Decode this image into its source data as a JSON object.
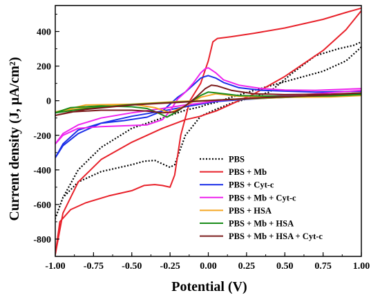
{
  "chart_data": {
    "type": "line",
    "title": "",
    "xlabel": "Potential (V)",
    "ylabel": "Current density (J, µA/cm²)",
    "xlim": [
      -1.0,
      1.0
    ],
    "ylim": [
      -900,
      550
    ],
    "xticks": [
      "-1.00",
      "-0.75",
      "-0.50",
      "-0.25",
      "0.00",
      "0.25",
      "0.50",
      "0.75",
      "1.00"
    ],
    "yticks": [
      "-800",
      "-600",
      "-400",
      "-200",
      "0",
      "200",
      "400"
    ],
    "grid": false,
    "legend_position": "bottom-right",
    "series": [
      {
        "name": "PBS",
        "color": "#000000",
        "dash": "dotted",
        "x": [
          1.0,
          0.9,
          0.75,
          0.5,
          0.3,
          0.15,
          0.05,
          -0.02,
          -0.05,
          -0.15,
          -0.3,
          -0.5,
          -0.7,
          -0.85,
          -0.95,
          -1.0,
          -0.95,
          -0.85,
          -0.7,
          -0.6,
          -0.5,
          -0.42,
          -0.35,
          -0.3,
          -0.25,
          -0.22,
          -0.15,
          -0.05,
          0.05,
          0.15,
          0.25,
          0.4,
          0.55,
          0.7,
          0.85,
          0.95,
          1.0
        ],
        "y": [
          310,
          230,
          170,
          110,
          60,
          20,
          -10,
          -25,
          -35,
          -55,
          -100,
          -160,
          -270,
          -400,
          -560,
          -680,
          -560,
          -470,
          -410,
          -390,
          -370,
          -350,
          -345,
          -365,
          -385,
          -370,
          -200,
          -90,
          -50,
          -15,
          10,
          50,
          160,
          260,
          300,
          320,
          340
        ]
      },
      {
        "name": "PBS + Mb",
        "color": "#e8212a",
        "dash": "solid",
        "x": [
          1.0,
          0.9,
          0.75,
          0.5,
          0.3,
          0.15,
          0.05,
          -0.02,
          -0.05,
          -0.15,
          -0.3,
          -0.5,
          -0.7,
          -0.85,
          -0.95,
          -1.0,
          -0.97,
          -0.9,
          -0.8,
          -0.65,
          -0.5,
          -0.42,
          -0.35,
          -0.3,
          -0.25,
          -0.22,
          -0.18,
          -0.12,
          -0.05,
          0.0,
          0.03,
          0.06,
          0.15,
          0.3,
          0.5,
          0.75,
          0.9,
          1.0
        ],
        "y": [
          520,
          410,
          290,
          140,
          40,
          -20,
          -60,
          -80,
          -90,
          -110,
          -160,
          -240,
          -340,
          -470,
          -650,
          -890,
          -700,
          -630,
          -590,
          -550,
          -520,
          -490,
          -485,
          -490,
          -500,
          -430,
          -200,
          0,
          100,
          230,
          340,
          360,
          370,
          390,
          420,
          470,
          510,
          535
        ]
      },
      {
        "name": "PBS + Cyt-c",
        "color": "#1a2ee8",
        "dash": "solid",
        "x": [
          1.0,
          0.7,
          0.4,
          0.2,
          0.05,
          -0.05,
          -0.15,
          -0.3,
          -0.5,
          -0.7,
          -0.85,
          -0.95,
          -1.0,
          -0.95,
          -0.85,
          -0.7,
          -0.55,
          -0.4,
          -0.3,
          -0.25,
          -0.2,
          -0.15,
          -0.1,
          -0.05,
          -0.02,
          0.0,
          0.05,
          0.1,
          0.2,
          0.35,
          0.5,
          0.7,
          1.0
        ],
        "y": [
          35,
          25,
          15,
          5,
          -5,
          -20,
          -35,
          -60,
          -90,
          -130,
          -190,
          -260,
          -330,
          -250,
          -170,
          -130,
          -115,
          -95,
          -60,
          -20,
          20,
          50,
          90,
          130,
          140,
          145,
          130,
          105,
          75,
          60,
          55,
          50,
          55
        ]
      },
      {
        "name": "PBS + Mb + Cyt-c",
        "color": "#ee22ee",
        "dash": "solid",
        "x": [
          1.0,
          0.7,
          0.4,
          0.2,
          0.05,
          -0.05,
          -0.15,
          -0.3,
          -0.5,
          -0.7,
          -0.85,
          -0.95,
          -1.0,
          -0.95,
          -0.85,
          -0.7,
          -0.55,
          -0.4,
          -0.3,
          -0.25,
          -0.2,
          -0.15,
          -0.1,
          -0.05,
          -0.02,
          0.0,
          0.05,
          0.1,
          0.2,
          0.35,
          0.5,
          0.7,
          1.0
        ],
        "y": [
          60,
          40,
          25,
          10,
          0,
          -15,
          -25,
          -45,
          -70,
          -100,
          -140,
          -190,
          -250,
          -200,
          -160,
          -150,
          -145,
          -140,
          -110,
          -60,
          10,
          50,
          100,
          160,
          185,
          190,
          160,
          120,
          90,
          70,
          62,
          60,
          70
        ]
      },
      {
        "name": "PBS + HSA",
        "color": "#f5a623",
        "dash": "solid",
        "x": [
          1.0,
          0.7,
          0.4,
          0.1,
          -0.2,
          -0.5,
          -0.8,
          -1.0,
          -0.8,
          -0.5,
          -0.35,
          -0.25,
          -0.15,
          -0.05,
          0.05,
          0.2,
          0.5,
          0.8,
          1.0
        ],
        "y": [
          35,
          25,
          15,
          5,
          -5,
          -20,
          -40,
          -65,
          -25,
          -20,
          -40,
          -70,
          -30,
          20,
          40,
          25,
          20,
          22,
          30
        ]
      },
      {
        "name": "PBS + Mb + HSA",
        "color": "#1a8c1a",
        "dash": "solid",
        "x": [
          1.0,
          0.7,
          0.4,
          0.1,
          -0.2,
          -0.5,
          -0.8,
          -1.0,
          -0.9,
          -0.7,
          -0.5,
          -0.4,
          -0.33,
          -0.27,
          -0.2,
          -0.12,
          -0.05,
          0.0,
          0.05,
          0.2,
          0.5,
          0.8,
          1.0
        ],
        "y": [
          40,
          28,
          18,
          5,
          -8,
          -22,
          -45,
          -70,
          -40,
          -30,
          -35,
          -45,
          -70,
          -95,
          -60,
          -10,
          30,
          50,
          45,
          30,
          25,
          28,
          35
        ]
      },
      {
        "name": "PBS + Mb + HSA + Cyt-c",
        "color": "#7a1a1a",
        "dash": "solid",
        "x": [
          1.0,
          0.7,
          0.4,
          0.1,
          -0.2,
          -0.5,
          -0.8,
          -1.0,
          -0.9,
          -0.7,
          -0.5,
          -0.4,
          -0.3,
          -0.22,
          -0.15,
          -0.08,
          -0.02,
          0.02,
          0.06,
          0.15,
          0.3,
          0.5,
          0.8,
          1.0
        ],
        "y": [
          45,
          30,
          20,
          5,
          -10,
          -25,
          -50,
          -85,
          -65,
          -55,
          -55,
          -60,
          -70,
          -65,
          -30,
          20,
          70,
          90,
          85,
          60,
          40,
          35,
          38,
          45
        ]
      }
    ]
  }
}
